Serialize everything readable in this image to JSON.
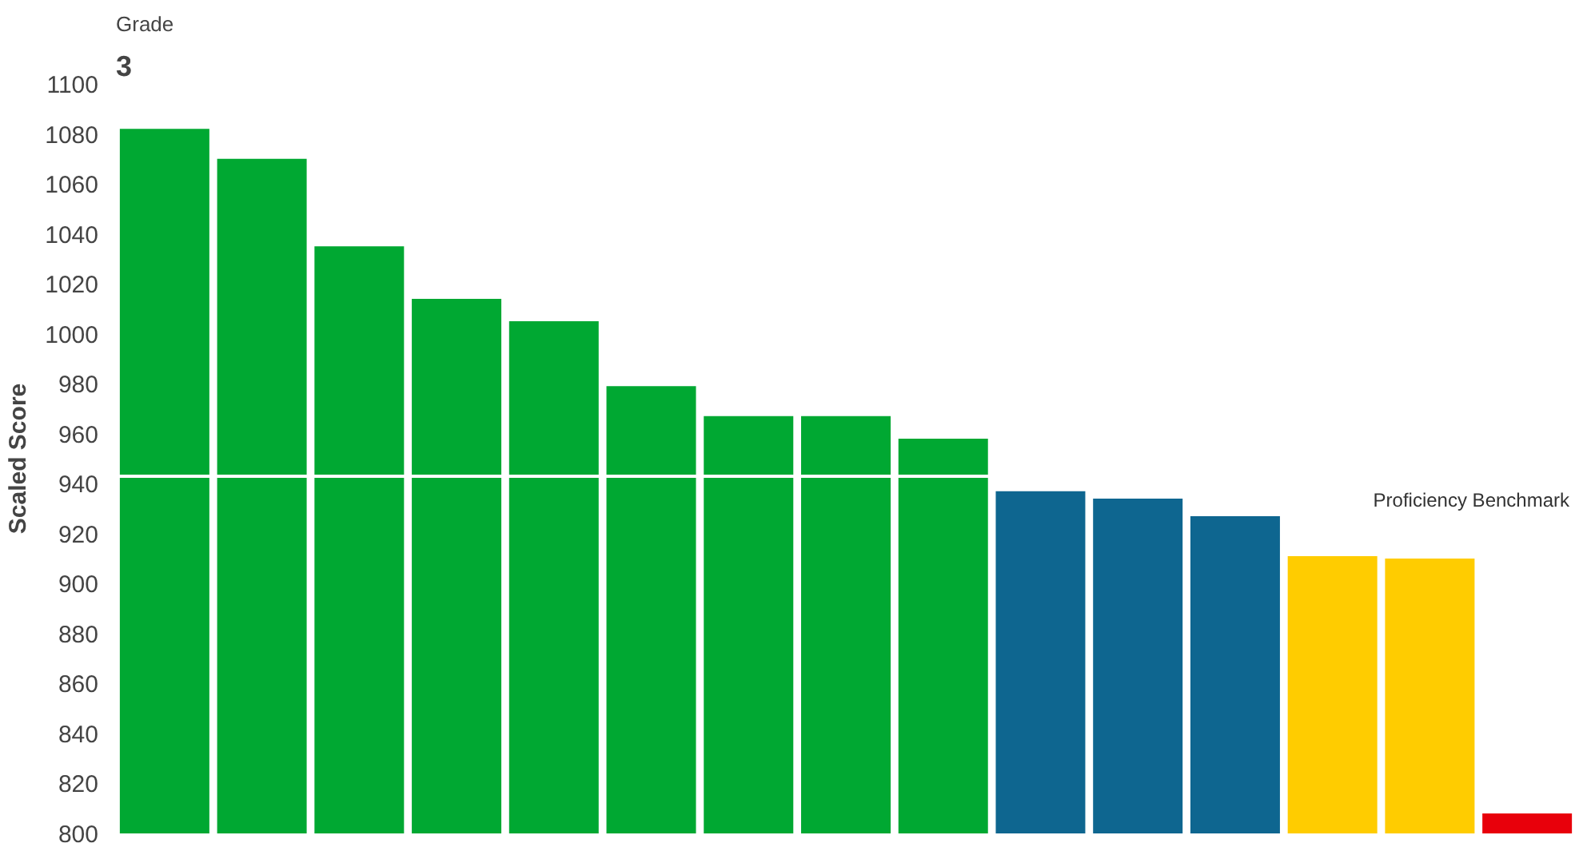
{
  "chart_data": {
    "type": "bar",
    "title": "Grade",
    "subtitle": "3",
    "ylabel": "Scaled Score",
    "categories": [
      null,
      null,
      null,
      null,
      null,
      null,
      null,
      null,
      null,
      null,
      null,
      null,
      null,
      null,
      null
    ],
    "values": [
      1082,
      1070,
      1035,
      1014,
      1005,
      979,
      967,
      967,
      958,
      937,
      934,
      927,
      911,
      910,
      808
    ],
    "colors": [
      "#00a832",
      "#00a832",
      "#00a832",
      "#00a832",
      "#00a832",
      "#00a832",
      "#00a832",
      "#00a832",
      "#00a832",
      "#0e6690",
      "#0e6690",
      "#0e6690",
      "#ffcc00",
      "#ffcc00",
      "#e8000b"
    ],
    "ylim": [
      800,
      1100
    ],
    "yticks": [
      800,
      820,
      840,
      860,
      880,
      900,
      920,
      940,
      960,
      980,
      1000,
      1020,
      1040,
      1060,
      1080,
      1100
    ],
    "ref_lines": [
      {
        "axis": "y",
        "value": 943,
        "label": "Proficiency Benchmark",
        "color": "#ffffff"
      }
    ],
    "grid": false,
    "tick_labels": "y"
  }
}
